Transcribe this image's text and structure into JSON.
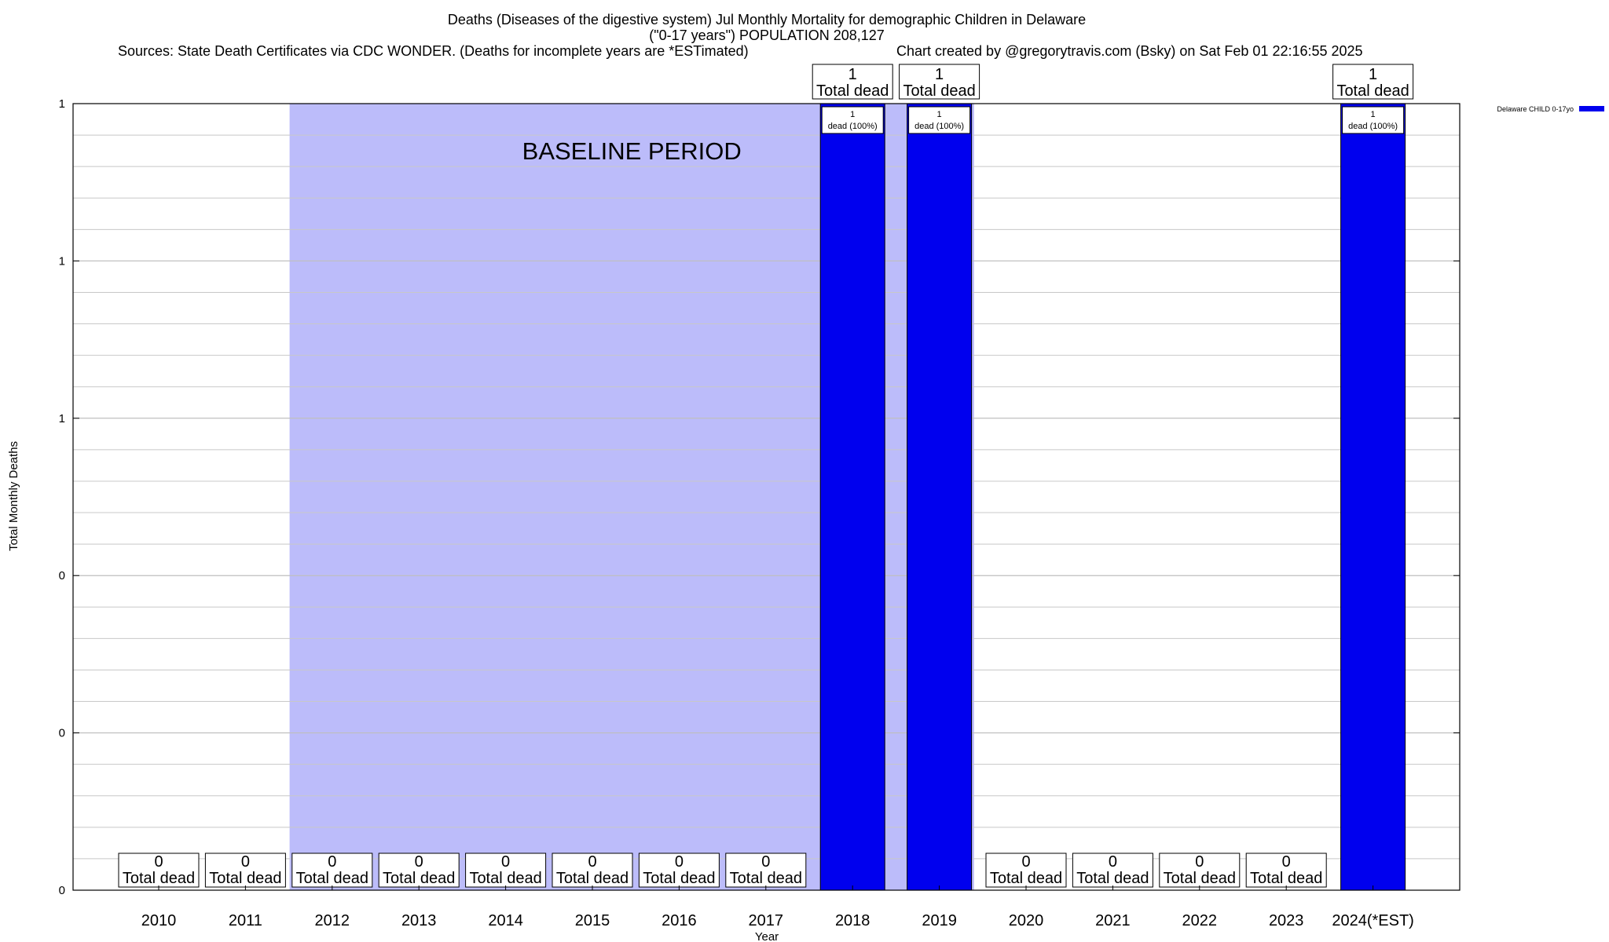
{
  "chart_data": {
    "type": "bar",
    "title": "Deaths (Diseases of the digestive system) Jul Monthly Mortality for demographic Children in Delaware",
    "subtitle": "(\"0-17 years\") POPULATION 208,127",
    "sources": "Sources: State Death Certificates via CDC WONDER. (Deaths for incomplete years are *ESTimated)",
    "credit": "Chart created by @gregorytravis.com (Bsky) on Sat Feb 01 22:16:55 2025",
    "xlabel": "Year",
    "ylabel": "Total Monthly Deaths",
    "categories": [
      "2010",
      "2011",
      "2012",
      "2013",
      "2014",
      "2015",
      "2016",
      "2017",
      "2018",
      "2019",
      "2020",
      "2021",
      "2022",
      "2023",
      "2024(*EST)"
    ],
    "series": [
      {
        "name": "Delaware CHILD 0-17yo",
        "color": "#0000ee",
        "values": [
          0,
          0,
          0,
          0,
          0,
          0,
          0,
          0,
          1,
          1,
          0,
          0,
          0,
          0,
          1
        ]
      }
    ],
    "ylim": [
      0,
      1
    ],
    "y_ticks": [
      0,
      0.2,
      0.4,
      0.6,
      0.8,
      1
    ],
    "y_tick_labels": [
      "0",
      "0",
      "0",
      "1",
      "1",
      "1"
    ],
    "baseline": {
      "label": "BASELINE PERIOD",
      "start": "2012",
      "end": "2019",
      "color": "#bcbcfa"
    },
    "total_label_suffix": "Total dead",
    "bar_label_text": "dead (100%)",
    "grid": true,
    "legend_position": "top-right"
  }
}
